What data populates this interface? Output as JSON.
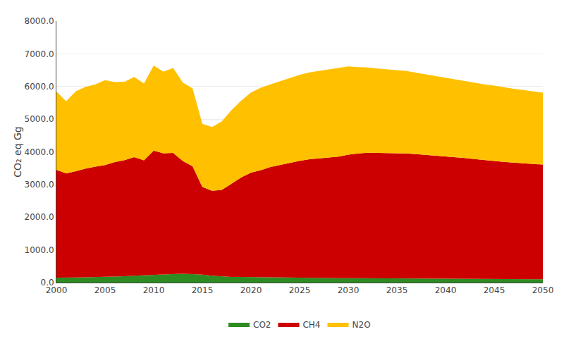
{
  "chart_data": {
    "type": "area",
    "stacked": true,
    "x": [
      2000,
      2001,
      2002,
      2003,
      2004,
      2005,
      2006,
      2007,
      2008,
      2009,
      2010,
      2011,
      2012,
      2013,
      2014,
      2015,
      2016,
      2017,
      2018,
      2019,
      2020,
      2021,
      2022,
      2023,
      2024,
      2025,
      2026,
      2027,
      2028,
      2029,
      2030,
      2031,
      2032,
      2033,
      2034,
      2035,
      2036,
      2037,
      2038,
      2039,
      2040,
      2041,
      2042,
      2043,
      2044,
      2045,
      2046,
      2047,
      2048,
      2049,
      2050
    ],
    "series": [
      {
        "name": "CO2",
        "color": "#2e8b22",
        "values": [
          150,
          145,
          155,
          160,
          165,
          175,
          185,
          195,
          210,
          220,
          240,
          255,
          265,
          270,
          260,
          245,
          210,
          185,
          175,
          170,
          165,
          160,
          155,
          150,
          148,
          145,
          143,
          141,
          139,
          137,
          135,
          133,
          131,
          129,
          127,
          125,
          123,
          121,
          119,
          117,
          115,
          113,
          111,
          109,
          107,
          105,
          103,
          101,
          100,
          100,
          100
        ]
      },
      {
        "name": "CH4",
        "color": "#cc0000",
        "values": [
          3300,
          3200,
          3250,
          3330,
          3380,
          3420,
          3500,
          3550,
          3630,
          3520,
          3800,
          3700,
          3700,
          3450,
          3300,
          2680,
          2600,
          2650,
          2850,
          3050,
          3200,
          3280,
          3380,
          3450,
          3520,
          3580,
          3630,
          3660,
          3680,
          3720,
          3780,
          3820,
          3840,
          3840,
          3840,
          3840,
          3830,
          3810,
          3790,
          3770,
          3750,
          3720,
          3700,
          3670,
          3640,
          3620,
          3590,
          3570,
          3550,
          3530,
          3510
        ]
      },
      {
        "name": "N2O",
        "color": "#ffc000",
        "values": [
          2400,
          2200,
          2450,
          2500,
          2520,
          2600,
          2450,
          2400,
          2450,
          2350,
          2600,
          2500,
          2600,
          2400,
          2380,
          1930,
          1950,
          2100,
          2250,
          2350,
          2450,
          2520,
          2530,
          2560,
          2600,
          2630,
          2660,
          2680,
          2700,
          2720,
          2700,
          2640,
          2610,
          2580,
          2560,
          2540,
          2520,
          2490,
          2460,
          2430,
          2400,
          2380,
          2360,
          2340,
          2320,
          2300,
          2280,
          2260,
          2240,
          2220,
          2200
        ]
      }
    ],
    "ylabel": "CO₂ eq Gg",
    "xlim": [
      2000,
      2050
    ],
    "xticks": [
      2000,
      2005,
      2010,
      2015,
      2020,
      2025,
      2030,
      2035,
      2040,
      2045,
      2050
    ],
    "ylim": [
      0,
      8000
    ],
    "yticks": [
      {
        "value": 0,
        "label": "0.0"
      },
      {
        "value": 1000,
        "label": "1000.0"
      },
      {
        "value": 2000,
        "label": "2000.0"
      },
      {
        "value": 3000,
        "label": "3000.0"
      },
      {
        "value": 4000,
        "label": "4000.0"
      },
      {
        "value": 5000,
        "label": "5000.0"
      },
      {
        "value": 6000,
        "label": "6000.0"
      },
      {
        "value": 7000,
        "label": "7000.0"
      },
      {
        "value": 8000,
        "label": "8000.0"
      }
    ],
    "grid": true,
    "legend": "bottom"
  }
}
